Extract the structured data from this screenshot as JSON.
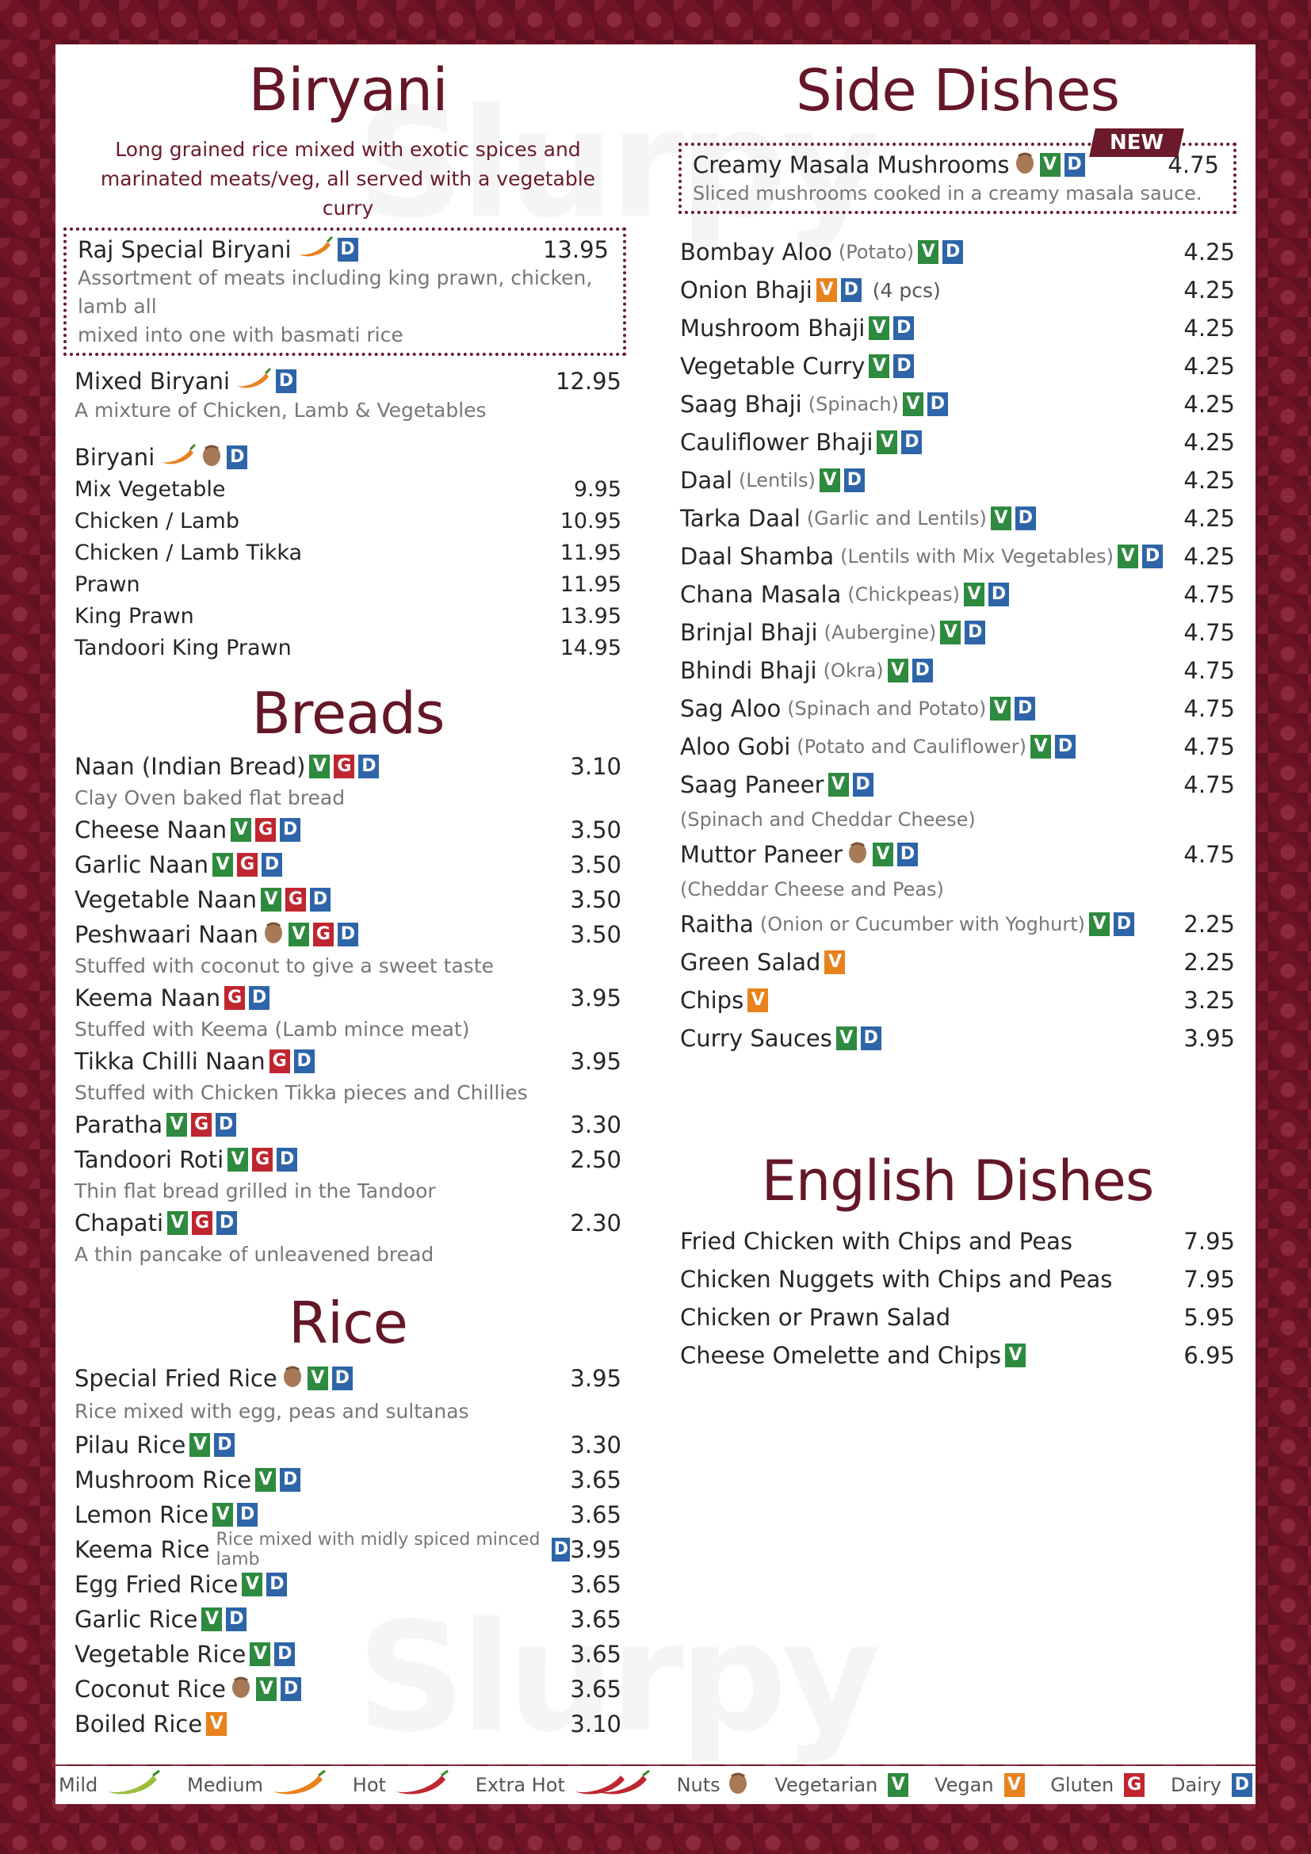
{
  "biryani": {
    "title": "Biryani",
    "subtitle_1": "Long grained rice mixed with exotic spices and",
    "subtitle_2": "marinated meats/veg, all served with a vegetable curry",
    "special": {
      "name": "Raj Special Biryani",
      "price": "13.95",
      "desc_1": "Assortment of meats including king prawn, chicken, lamb all",
      "desc_2": "mixed into one with basmati rice"
    },
    "mixed": {
      "name": "Mixed Biryani",
      "price": "12.95",
      "desc": "A mixture of Chicken, Lamb & Vegetables"
    },
    "group_label": "Biryani",
    "items": [
      {
        "name": "Mix Vegetable",
        "price": "9.95"
      },
      {
        "name": "Chicken / Lamb",
        "price": "10.95"
      },
      {
        "name": "Chicken / Lamb Tikka",
        "price": "11.95"
      },
      {
        "name": "Prawn",
        "price": "11.95"
      },
      {
        "name": "King Prawn",
        "price": "13.95"
      },
      {
        "name": "Tandoori King Prawn",
        "price": "14.95"
      }
    ]
  },
  "breads": {
    "title": "Breads",
    "items": [
      {
        "name": "Naan (Indian Bread)",
        "price": "3.10",
        "desc": "Clay Oven baked flat bread"
      },
      {
        "name": "Cheese Naan",
        "price": "3.50"
      },
      {
        "name": "Garlic Naan",
        "price": "3.50"
      },
      {
        "name": "Vegetable Naan",
        "price": "3.50"
      },
      {
        "name": "Peshwaari Naan",
        "price": "3.50",
        "desc": "Stuffed with coconut to give a sweet taste"
      },
      {
        "name": "Keema Naan",
        "price": "3.95",
        "desc": "Stuffed with Keema (Lamb mince meat)"
      },
      {
        "name": "Tikka Chilli Naan",
        "price": "3.95",
        "desc": "Stuffed with Chicken Tikka pieces and Chillies"
      },
      {
        "name": "Paratha",
        "price": "3.30"
      },
      {
        "name": "Tandoori Roti",
        "price": "2.50",
        "desc": "Thin flat bread grilled in the Tandoor"
      },
      {
        "name": "Chapati",
        "price": "2.30",
        "desc": "A thin pancake of unleavened bread"
      }
    ]
  },
  "rice": {
    "title": "Rice",
    "items": [
      {
        "name": "Special Fried Rice",
        "price": "3.95",
        "desc": "Rice mixed with egg, peas and sultanas"
      },
      {
        "name": "Pilau Rice",
        "price": "3.30"
      },
      {
        "name": "Mushroom Rice",
        "price": "3.65"
      },
      {
        "name": "Lemon Rice",
        "price": "3.65"
      },
      {
        "name": "Keema Rice",
        "price": "3.95",
        "sub": "Rice mixed with midly spiced minced lamb"
      },
      {
        "name": "Egg Fried Rice",
        "price": "3.65"
      },
      {
        "name": "Garlic Rice",
        "price": "3.65"
      },
      {
        "name": "Vegetable Rice",
        "price": "3.65"
      },
      {
        "name": "Coconut Rice",
        "price": "3.65"
      },
      {
        "name": "Boiled Rice",
        "price": "3.10"
      }
    ]
  },
  "sides": {
    "title": "Side Dishes",
    "new_badge": "NEW",
    "featured": {
      "name": "Creamy Masala Mushrooms",
      "price": "4.75",
      "desc": "Sliced mushrooms cooked in a creamy masala sauce."
    },
    "items": [
      {
        "name": "Bombay Aloo",
        "sub": "(Potato)",
        "price": "4.25"
      },
      {
        "name": "Onion Bhaji",
        "after": "(4 pcs)",
        "price": "4.25"
      },
      {
        "name": "Mushroom Bhaji",
        "price": "4.25"
      },
      {
        "name": "Vegetable Curry",
        "price": "4.25"
      },
      {
        "name": "Saag Bhaji",
        "sub": "(Spinach)",
        "price": "4.25"
      },
      {
        "name": "Cauliflower Bhaji",
        "price": "4.25"
      },
      {
        "name": "Daal",
        "sub": "(Lentils)",
        "price": "4.25"
      },
      {
        "name": "Tarka Daal",
        "sub": "(Garlic and Lentils)",
        "price": "4.25"
      },
      {
        "name": "Daal Shamba",
        "sub": "(Lentils with Mix Vegetables)",
        "price": "4.25"
      },
      {
        "name": "Chana Masala",
        "sub": "(Chickpeas)",
        "price": "4.75"
      },
      {
        "name": "Brinjal Bhaji",
        "sub": "(Aubergine)",
        "price": "4.75"
      },
      {
        "name": "Bhindi Bhaji",
        "sub": "(Okra)",
        "price": "4.75"
      },
      {
        "name": "Sag Aloo",
        "sub": "(Spinach and Potato)",
        "price": "4.75"
      },
      {
        "name": "Aloo Gobi",
        "sub": "(Potato and Cauliflower)",
        "price": "4.75"
      },
      {
        "name": "Saag Paneer",
        "price": "4.75",
        "desc": "(Spinach and Cheddar Cheese)"
      },
      {
        "name": "Muttor Paneer",
        "price": "4.75",
        "desc": "(Cheddar Cheese and Peas)"
      },
      {
        "name": "Raitha",
        "sub": "(Onion or Cucumber with Yoghurt)",
        "price": "2.25"
      },
      {
        "name": "Green Salad",
        "price": "2.25"
      },
      {
        "name": "Chips",
        "price": "3.25"
      },
      {
        "name": "Curry Sauces",
        "price": "3.95"
      }
    ]
  },
  "english": {
    "title": "English Dishes",
    "items": [
      {
        "name": "Fried Chicken with Chips and Peas",
        "price": "7.95"
      },
      {
        "name": "Chicken Nuggets with Chips and Peas",
        "price": "7.95"
      },
      {
        "name": "Chicken or Prawn Salad",
        "price": "5.95"
      },
      {
        "name": "Cheese Omelette and Chips",
        "price": "6.95"
      }
    ]
  },
  "legend": {
    "mild": "Mild",
    "medium": "Medium",
    "hot": "Hot",
    "extra_hot": "Extra Hot",
    "nuts": "Nuts",
    "vegetarian": "Vegetarian",
    "vegan": "Vegan",
    "gluten": "Gluten",
    "dairy": "Dairy"
  },
  "tags": {
    "v": "V",
    "g": "G",
    "d": "D"
  },
  "watermark": "Slurpy",
  "colors": {
    "heading": "#651728",
    "vegetarian": "#2d8a3e",
    "vegan": "#e8821d",
    "gluten": "#c0262f",
    "dairy": "#2e64a8",
    "background": "#6e1424"
  }
}
